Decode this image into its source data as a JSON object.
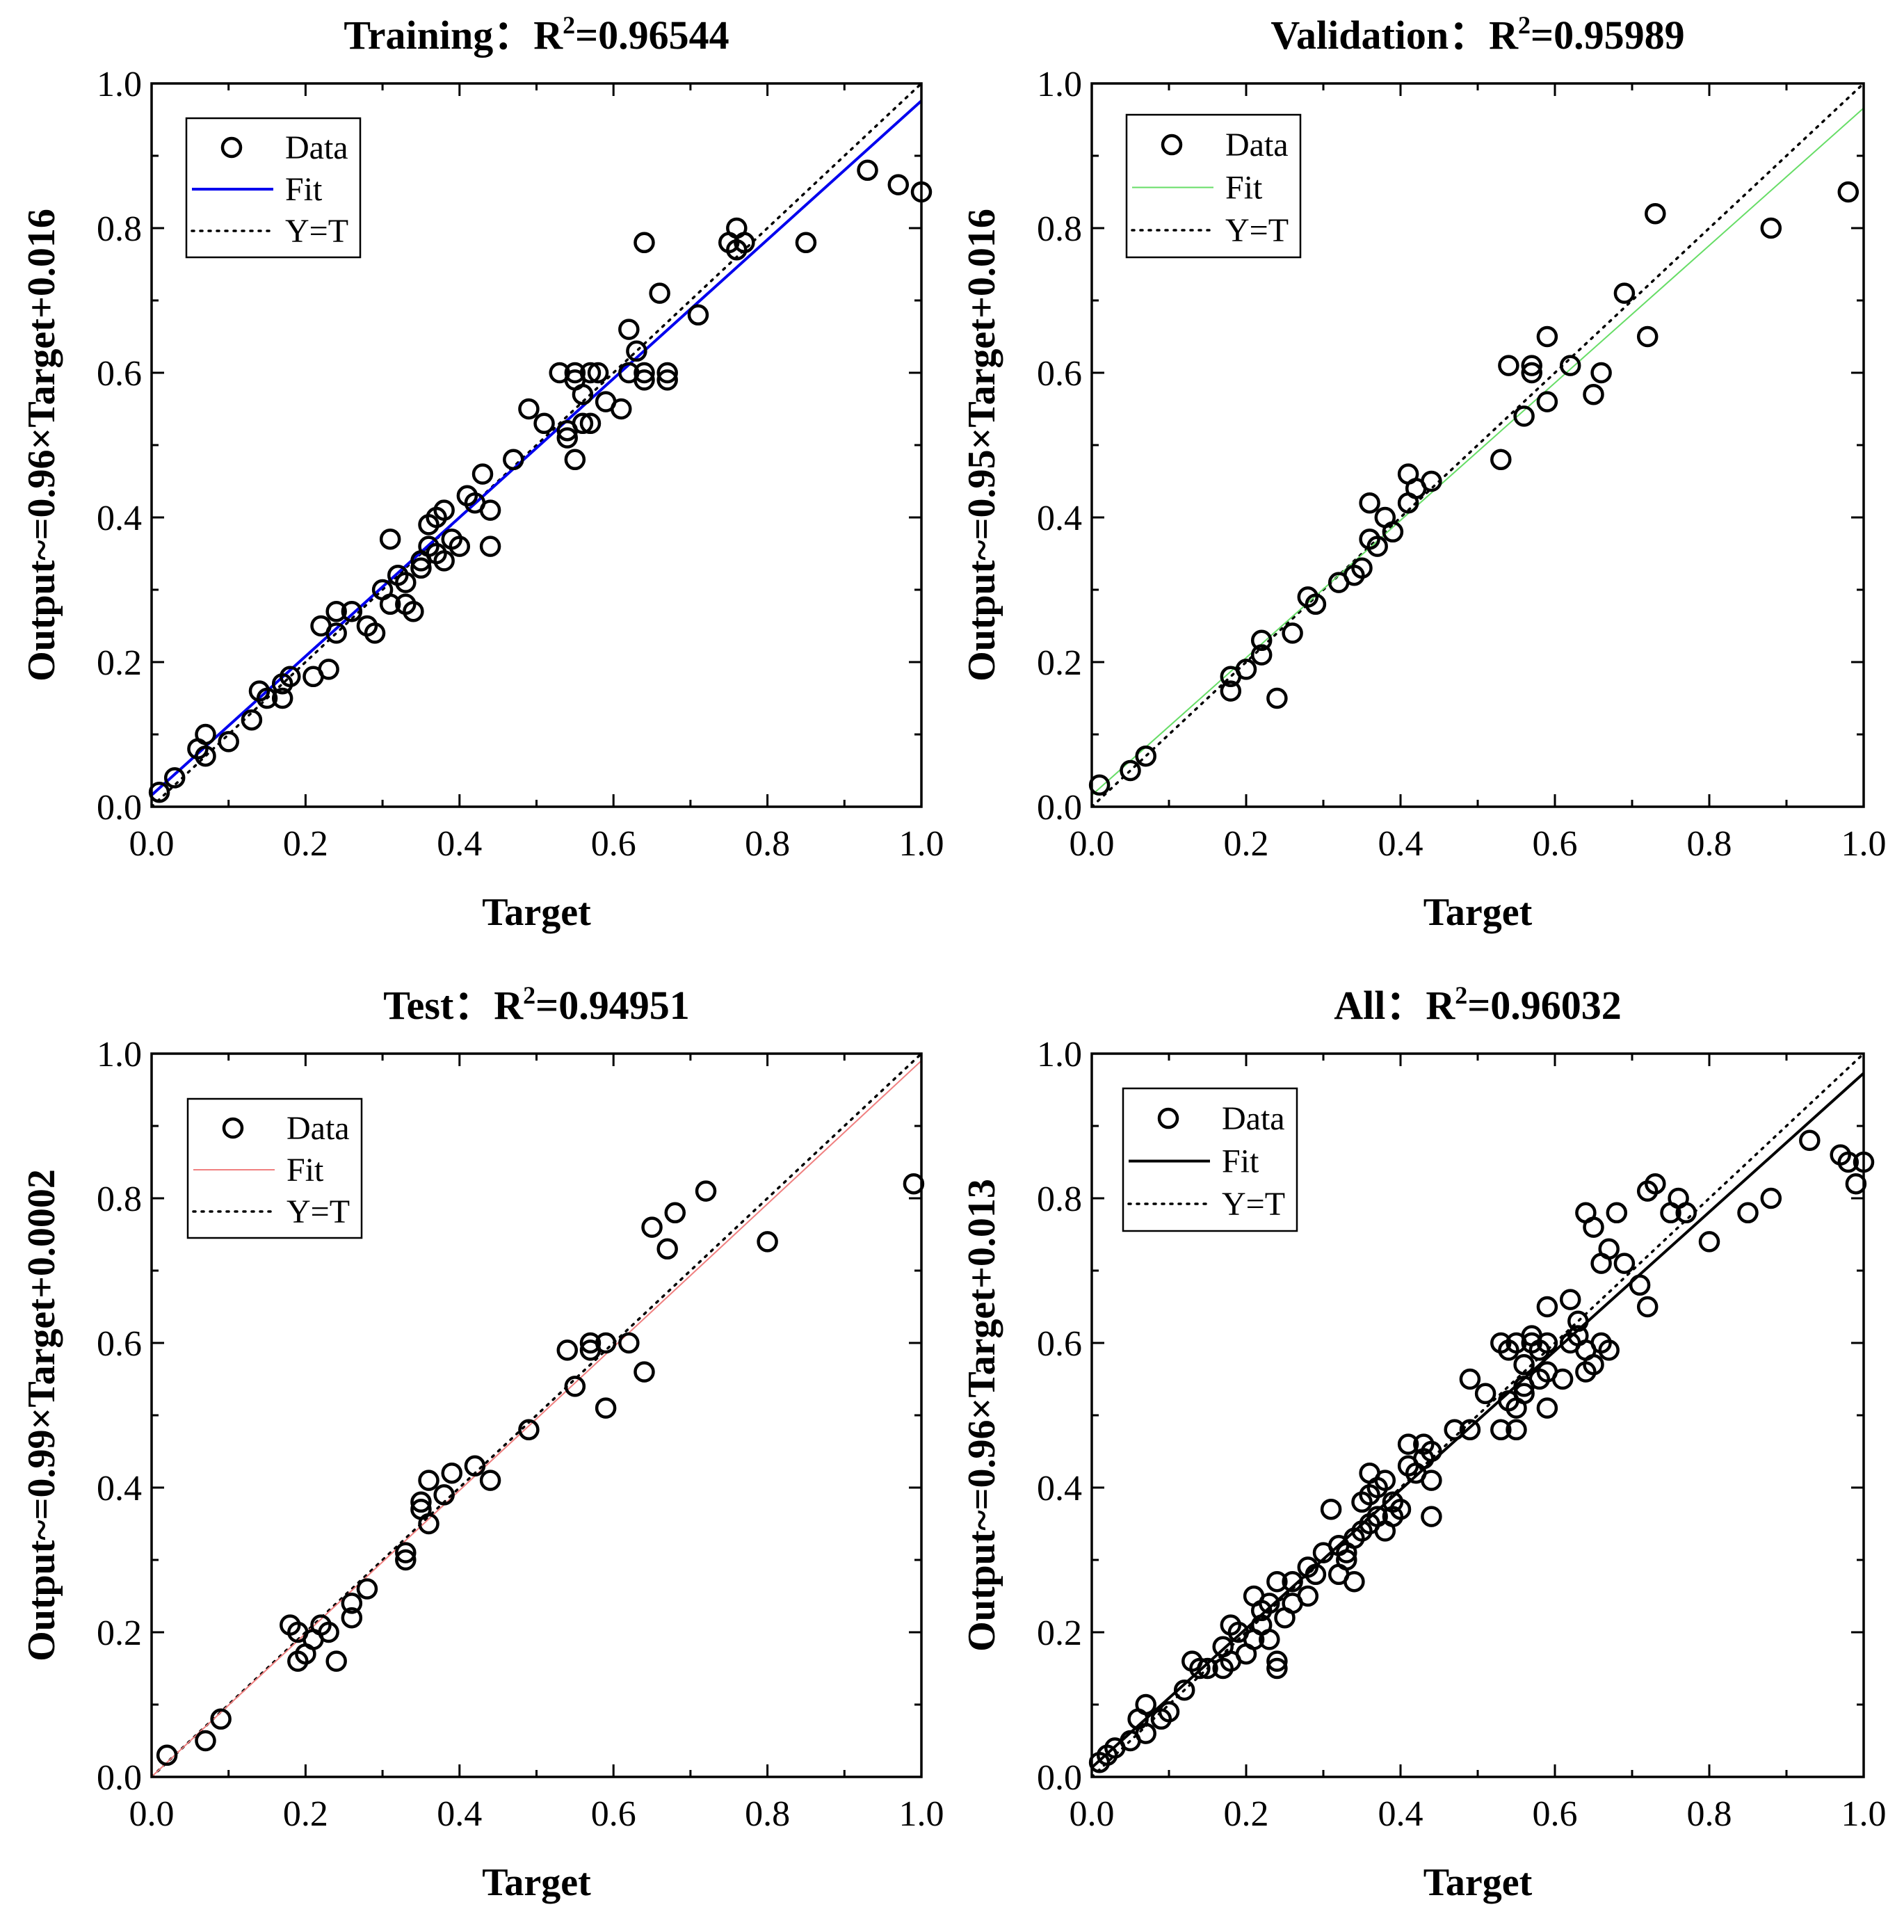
{
  "chart_data": [
    {
      "type": "scatter",
      "title": "Training：R",
      "title_sup": "2",
      "title_value": "=0.96544",
      "xlabel": "Target",
      "ylabel": "Output~=0.96×Target+0.016",
      "xlim": [
        0,
        1
      ],
      "ylim": [
        0,
        1
      ],
      "xticks": [
        "0.0",
        "0.2",
        "0.4",
        "0.6",
        "0.8",
        "1.0"
      ],
      "yticks": [
        "0.0",
        "0.2",
        "0.4",
        "0.6",
        "0.8",
        "1.0"
      ],
      "legend": {
        "position": "top-left",
        "data": "Data",
        "fit": "Fit",
        "ident": "Y=T"
      },
      "fit_color": "#0000ee",
      "fit_width": 4,
      "fit": {
        "slope": 0.96,
        "intercept": 0.016
      },
      "points": [
        [
          0.01,
          0.02
        ],
        [
          0.03,
          0.04
        ],
        [
          0.06,
          0.08
        ],
        [
          0.07,
          0.07
        ],
        [
          0.07,
          0.1
        ],
        [
          0.1,
          0.09
        ],
        [
          0.13,
          0.12
        ],
        [
          0.14,
          0.16
        ],
        [
          0.15,
          0.15
        ],
        [
          0.17,
          0.15
        ],
        [
          0.17,
          0.17
        ],
        [
          0.18,
          0.18
        ],
        [
          0.21,
          0.18
        ],
        [
          0.22,
          0.25
        ],
        [
          0.23,
          0.19
        ],
        [
          0.24,
          0.24
        ],
        [
          0.24,
          0.27
        ],
        [
          0.26,
          0.27
        ],
        [
          0.28,
          0.25
        ],
        [
          0.29,
          0.24
        ],
        [
          0.3,
          0.3
        ],
        [
          0.31,
          0.28
        ],
        [
          0.31,
          0.37
        ],
        [
          0.32,
          0.32
        ],
        [
          0.33,
          0.28
        ],
        [
          0.33,
          0.31
        ],
        [
          0.34,
          0.27
        ],
        [
          0.35,
          0.34
        ],
        [
          0.35,
          0.33
        ],
        [
          0.36,
          0.36
        ],
        [
          0.36,
          0.39
        ],
        [
          0.37,
          0.35
        ],
        [
          0.37,
          0.4
        ],
        [
          0.38,
          0.34
        ],
        [
          0.38,
          0.41
        ],
        [
          0.39,
          0.37
        ],
        [
          0.4,
          0.36
        ],
        [
          0.41,
          0.43
        ],
        [
          0.42,
          0.42
        ],
        [
          0.43,
          0.46
        ],
        [
          0.44,
          0.36
        ],
        [
          0.44,
          0.41
        ],
        [
          0.47,
          0.48
        ],
        [
          0.49,
          0.55
        ],
        [
          0.51,
          0.53
        ],
        [
          0.53,
          0.6
        ],
        [
          0.54,
          0.52
        ],
        [
          0.54,
          0.51
        ],
        [
          0.55,
          0.59
        ],
        [
          0.55,
          0.6
        ],
        [
          0.55,
          0.48
        ],
        [
          0.56,
          0.57
        ],
        [
          0.56,
          0.53
        ],
        [
          0.57,
          0.6
        ],
        [
          0.57,
          0.53
        ],
        [
          0.58,
          0.6
        ],
        [
          0.59,
          0.56
        ],
        [
          0.61,
          0.55
        ],
        [
          0.62,
          0.6
        ],
        [
          0.62,
          0.66
        ],
        [
          0.63,
          0.63
        ],
        [
          0.64,
          0.78
        ],
        [
          0.64,
          0.6
        ],
        [
          0.64,
          0.59
        ],
        [
          0.66,
          0.71
        ],
        [
          0.67,
          0.59
        ],
        [
          0.67,
          0.6
        ],
        [
          0.71,
          0.68
        ],
        [
          0.75,
          0.78
        ],
        [
          0.76,
          0.8
        ],
        [
          0.76,
          0.77
        ],
        [
          0.77,
          0.78
        ],
        [
          0.85,
          0.78
        ],
        [
          0.93,
          0.88
        ],
        [
          0.97,
          0.86
        ],
        [
          1.0,
          0.85
        ]
      ]
    },
    {
      "type": "scatter",
      "title": "Validation：R",
      "title_sup": "2",
      "title_value": "=0.95989",
      "xlabel": "Target",
      "ylabel": "Output~=0.95×Target+0.016",
      "xlim": [
        0,
        1
      ],
      "ylim": [
        0,
        1
      ],
      "xticks": [
        "0.0",
        "0.2",
        "0.4",
        "0.6",
        "0.8",
        "1.0"
      ],
      "yticks": [
        "0.0",
        "0.2",
        "0.4",
        "0.6",
        "0.8",
        "1.0"
      ],
      "legend": {
        "position": "top-left",
        "data": "Data",
        "fit": "Fit",
        "ident": "Y=T"
      },
      "fit_color": "#66dd66",
      "fit_width": 2,
      "fit": {
        "slope": 0.95,
        "intercept": 0.016
      },
      "points": [
        [
          0.01,
          0.03
        ],
        [
          0.05,
          0.05
        ],
        [
          0.07,
          0.07
        ],
        [
          0.18,
          0.16
        ],
        [
          0.18,
          0.18
        ],
        [
          0.2,
          0.19
        ],
        [
          0.22,
          0.23
        ],
        [
          0.22,
          0.21
        ],
        [
          0.24,
          0.15
        ],
        [
          0.26,
          0.24
        ],
        [
          0.28,
          0.29
        ],
        [
          0.29,
          0.28
        ],
        [
          0.32,
          0.31
        ],
        [
          0.34,
          0.32
        ],
        [
          0.35,
          0.33
        ],
        [
          0.36,
          0.37
        ],
        [
          0.36,
          0.42
        ],
        [
          0.37,
          0.36
        ],
        [
          0.38,
          0.4
        ],
        [
          0.39,
          0.38
        ],
        [
          0.41,
          0.42
        ],
        [
          0.41,
          0.46
        ],
        [
          0.42,
          0.44
        ],
        [
          0.44,
          0.45
        ],
        [
          0.53,
          0.48
        ],
        [
          0.54,
          0.61
        ],
        [
          0.56,
          0.54
        ],
        [
          0.57,
          0.61
        ],
        [
          0.57,
          0.6
        ],
        [
          0.59,
          0.65
        ],
        [
          0.59,
          0.56
        ],
        [
          0.62,
          0.61
        ],
        [
          0.65,
          0.57
        ],
        [
          0.66,
          0.6
        ],
        [
          0.69,
          0.71
        ],
        [
          0.72,
          0.65
        ],
        [
          0.73,
          0.82
        ],
        [
          0.88,
          0.8
        ],
        [
          0.98,
          0.85
        ]
      ]
    },
    {
      "type": "scatter",
      "title": "Test：R",
      "title_sup": "2",
      "title_value": "=0.94951",
      "xlabel": "Target",
      "ylabel": "Output~=0.99×Target+0.0002",
      "xlim": [
        0,
        1
      ],
      "ylim": [
        0,
        1
      ],
      "xticks": [
        "0.0",
        "0.2",
        "0.4",
        "0.6",
        "0.8",
        "1.0"
      ],
      "yticks": [
        "0.0",
        "0.2",
        "0.4",
        "0.6",
        "0.8",
        "1.0"
      ],
      "legend": {
        "position": "top-left",
        "data": "Data",
        "fit": "Fit",
        "ident": "Y=T"
      },
      "fit_color": "#f08080",
      "fit_width": 2,
      "fit": {
        "slope": 0.99,
        "intercept": 0.0002
      },
      "points": [
        [
          0.02,
          0.03
        ],
        [
          0.07,
          0.05
        ],
        [
          0.09,
          0.08
        ],
        [
          0.18,
          0.21
        ],
        [
          0.19,
          0.2
        ],
        [
          0.19,
          0.16
        ],
        [
          0.2,
          0.17
        ],
        [
          0.21,
          0.19
        ],
        [
          0.22,
          0.21
        ],
        [
          0.23,
          0.2
        ],
        [
          0.24,
          0.16
        ],
        [
          0.26,
          0.22
        ],
        [
          0.26,
          0.24
        ],
        [
          0.28,
          0.26
        ],
        [
          0.33,
          0.3
        ],
        [
          0.33,
          0.31
        ],
        [
          0.35,
          0.37
        ],
        [
          0.35,
          0.38
        ],
        [
          0.36,
          0.41
        ],
        [
          0.36,
          0.35
        ],
        [
          0.38,
          0.39
        ],
        [
          0.39,
          0.42
        ],
        [
          0.42,
          0.43
        ],
        [
          0.44,
          0.41
        ],
        [
          0.49,
          0.48
        ],
        [
          0.54,
          0.59
        ],
        [
          0.55,
          0.54
        ],
        [
          0.57,
          0.6
        ],
        [
          0.57,
          0.59
        ],
        [
          0.59,
          0.6
        ],
        [
          0.59,
          0.51
        ],
        [
          0.62,
          0.6
        ],
        [
          0.64,
          0.56
        ],
        [
          0.65,
          0.76
        ],
        [
          0.67,
          0.73
        ],
        [
          0.68,
          0.78
        ],
        [
          0.72,
          0.81
        ],
        [
          0.8,
          0.74
        ],
        [
          0.99,
          0.82
        ]
      ]
    },
    {
      "type": "scatter",
      "title": "All：R",
      "title_sup": "2",
      "title_value": "=0.96032",
      "xlabel": "Target",
      "ylabel": "Output~=0.96×Target+0.013",
      "xlim": [
        0,
        1
      ],
      "ylim": [
        0,
        1
      ],
      "xticks": [
        "0.0",
        "0.2",
        "0.4",
        "0.6",
        "0.8",
        "1.0"
      ],
      "yticks": [
        "0.0",
        "0.2",
        "0.4",
        "0.6",
        "0.8",
        "1.0"
      ],
      "legend": {
        "position": "top-left",
        "data": "Data",
        "fit": "Fit",
        "ident": "Y=T"
      },
      "fit_color": "#000000",
      "fit_width": 4,
      "fit": {
        "slope": 0.96,
        "intercept": 0.013
      },
      "points": [
        [
          0.01,
          0.02
        ],
        [
          0.02,
          0.03
        ],
        [
          0.03,
          0.04
        ],
        [
          0.05,
          0.05
        ],
        [
          0.06,
          0.08
        ],
        [
          0.07,
          0.1
        ],
        [
          0.07,
          0.06
        ],
        [
          0.09,
          0.08
        ],
        [
          0.1,
          0.09
        ],
        [
          0.12,
          0.12
        ],
        [
          0.13,
          0.16
        ],
        [
          0.14,
          0.15
        ],
        [
          0.15,
          0.15
        ],
        [
          0.17,
          0.15
        ],
        [
          0.17,
          0.18
        ],
        [
          0.18,
          0.21
        ],
        [
          0.18,
          0.16
        ],
        [
          0.19,
          0.2
        ],
        [
          0.2,
          0.17
        ],
        [
          0.21,
          0.19
        ],
        [
          0.21,
          0.25
        ],
        [
          0.22,
          0.23
        ],
        [
          0.22,
          0.21
        ],
        [
          0.23,
          0.19
        ],
        [
          0.23,
          0.24
        ],
        [
          0.24,
          0.27
        ],
        [
          0.24,
          0.16
        ],
        [
          0.24,
          0.15
        ],
        [
          0.25,
          0.22
        ],
        [
          0.26,
          0.27
        ],
        [
          0.26,
          0.24
        ],
        [
          0.28,
          0.25
        ],
        [
          0.28,
          0.29
        ],
        [
          0.29,
          0.28
        ],
        [
          0.3,
          0.31
        ],
        [
          0.31,
          0.37
        ],
        [
          0.32,
          0.28
        ],
        [
          0.32,
          0.32
        ],
        [
          0.33,
          0.31
        ],
        [
          0.33,
          0.3
        ],
        [
          0.34,
          0.27
        ],
        [
          0.34,
          0.33
        ],
        [
          0.35,
          0.34
        ],
        [
          0.35,
          0.38
        ],
        [
          0.36,
          0.39
        ],
        [
          0.36,
          0.35
        ],
        [
          0.36,
          0.42
        ],
        [
          0.37,
          0.4
        ],
        [
          0.37,
          0.36
        ],
        [
          0.38,
          0.34
        ],
        [
          0.38,
          0.41
        ],
        [
          0.39,
          0.38
        ],
        [
          0.39,
          0.36
        ],
        [
          0.4,
          0.37
        ],
        [
          0.41,
          0.43
        ],
        [
          0.41,
          0.46
        ],
        [
          0.42,
          0.42
        ],
        [
          0.43,
          0.46
        ],
        [
          0.43,
          0.44
        ],
        [
          0.44,
          0.41
        ],
        [
          0.44,
          0.36
        ],
        [
          0.44,
          0.45
        ],
        [
          0.47,
          0.48
        ],
        [
          0.49,
          0.55
        ],
        [
          0.49,
          0.48
        ],
        [
          0.51,
          0.53
        ],
        [
          0.53,
          0.6
        ],
        [
          0.53,
          0.48
        ],
        [
          0.54,
          0.52
        ],
        [
          0.54,
          0.59
        ],
        [
          0.55,
          0.51
        ],
        [
          0.55,
          0.6
        ],
        [
          0.55,
          0.48
        ],
        [
          0.56,
          0.57
        ],
        [
          0.56,
          0.53
        ],
        [
          0.56,
          0.54
        ],
        [
          0.57,
          0.6
        ],
        [
          0.57,
          0.61
        ],
        [
          0.58,
          0.59
        ],
        [
          0.58,
          0.55
        ],
        [
          0.59,
          0.6
        ],
        [
          0.59,
          0.56
        ],
        [
          0.59,
          0.51
        ],
        [
          0.59,
          0.65
        ],
        [
          0.61,
          0.55
        ],
        [
          0.62,
          0.6
        ],
        [
          0.62,
          0.66
        ],
        [
          0.63,
          0.63
        ],
        [
          0.63,
          0.61
        ],
        [
          0.64,
          0.78
        ],
        [
          0.64,
          0.59
        ],
        [
          0.64,
          0.56
        ],
        [
          0.65,
          0.57
        ],
        [
          0.65,
          0.76
        ],
        [
          0.66,
          0.71
        ],
        [
          0.66,
          0.6
        ],
        [
          0.67,
          0.59
        ],
        [
          0.67,
          0.73
        ],
        [
          0.68,
          0.78
        ],
        [
          0.69,
          0.71
        ],
        [
          0.71,
          0.68
        ],
        [
          0.72,
          0.81
        ],
        [
          0.72,
          0.65
        ],
        [
          0.73,
          0.82
        ],
        [
          0.75,
          0.78
        ],
        [
          0.76,
          0.8
        ],
        [
          0.77,
          0.78
        ],
        [
          0.8,
          0.74
        ],
        [
          0.85,
          0.78
        ],
        [
          0.88,
          0.8
        ],
        [
          0.93,
          0.88
        ],
        [
          0.97,
          0.86
        ],
        [
          0.98,
          0.85
        ],
        [
          0.99,
          0.82
        ],
        [
          1.0,
          0.85
        ]
      ]
    }
  ]
}
